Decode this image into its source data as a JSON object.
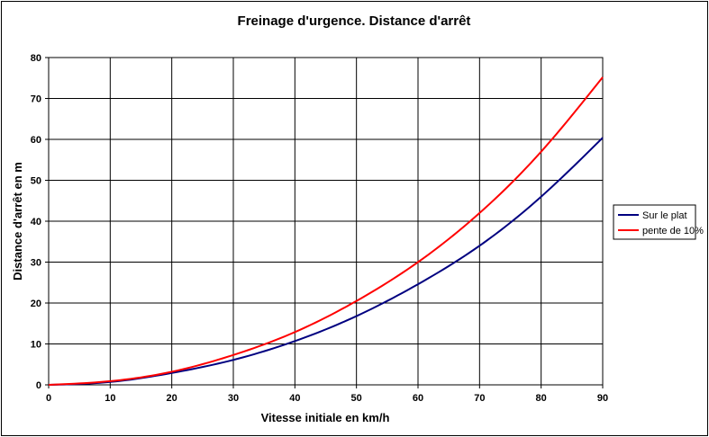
{
  "chart_data": {
    "type": "line",
    "title": "Freinage d'urgence. Distance d'arrêt",
    "xlabel": "Vitesse initiale en km/h",
    "ylabel": "Distance d'arrêt en m",
    "xlim": [
      0,
      90
    ],
    "ylim": [
      0,
      80
    ],
    "xticks": [
      0,
      10,
      20,
      30,
      40,
      50,
      60,
      70,
      80,
      90
    ],
    "yticks": [
      0,
      10,
      20,
      30,
      40,
      50,
      60,
      70,
      80
    ],
    "grid": true,
    "legend_position": "right",
    "x": [
      0,
      10,
      20,
      30,
      40,
      50,
      60,
      70,
      80,
      90
    ],
    "series": [
      {
        "name": "Sur le plat",
        "color": "#000080",
        "values": [
          0,
          0.7,
          2.9,
          6.1,
          10.7,
          16.8,
          24.6,
          34.0,
          46.0,
          60.4
        ]
      },
      {
        "name": "pente de 10%",
        "color": "#ff0000",
        "values": [
          0,
          0.9,
          3.2,
          7.3,
          12.9,
          20.5,
          30.0,
          42.0,
          57.0,
          75.2
        ]
      }
    ]
  }
}
